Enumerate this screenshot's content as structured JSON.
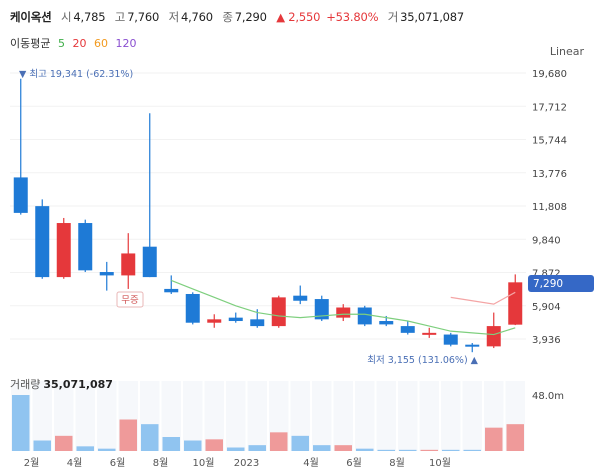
{
  "header": {
    "name": "케이옥션",
    "open_label": "시",
    "open": "4,785",
    "high_label": "고",
    "high": "7,760",
    "low_label": "저",
    "low": "4,760",
    "close_label": "종",
    "close": "7,290",
    "change": "▲ 2,550",
    "change_pct": "+53.80%",
    "volume_label": "거",
    "volume": "35,071,087"
  },
  "ma": {
    "title": "이동평균",
    "periods": [
      {
        "label": "5",
        "color": "#3fae49"
      },
      {
        "label": "20",
        "color": "#e5383b"
      },
      {
        "label": "60",
        "color": "#f29a1f"
      },
      {
        "label": "120",
        "color": "#8a4fd0"
      }
    ]
  },
  "scale_label": "Linear",
  "current_price": "7,290",
  "annotations": {
    "max_label": "▼ 최고 19,341 (-62.31%)",
    "min_label": "최저 3,155 (131.06%) ▲",
    "event_label": "무증"
  },
  "volume_title": {
    "label": "거래량",
    "value": "35,071,087"
  },
  "colors": {
    "up": "#e5383b",
    "down": "#1e7ad6",
    "up_vol": "#ef9a9a",
    "down_vol": "#90c4f0",
    "ma5": "#7ecf7e",
    "ma20": "#f4a5a5"
  },
  "chart_data": {
    "type": "candlestick",
    "y_ticks": [
      "19,680",
      "17,712",
      "15,744",
      "13,776",
      "11,808",
      "9,840",
      "7,872",
      "5,904",
      "3,936"
    ],
    "x_ticks": [
      "2월",
      "4월",
      "6월",
      "8월",
      "10월",
      "2023",
      "4월",
      "6월",
      "8월",
      "10월"
    ],
    "ylim": [
      3000,
      19680
    ],
    "candles": [
      {
        "o": 13500,
        "h": 19341,
        "l": 11300,
        "c": 11400
      },
      {
        "o": 11800,
        "h": 12200,
        "l": 7500,
        "c": 7600
      },
      {
        "o": 7600,
        "h": 11100,
        "l": 7500,
        "c": 10800
      },
      {
        "o": 10800,
        "h": 11000,
        "l": 7900,
        "c": 8000
      },
      {
        "o": 7900,
        "h": 8500,
        "l": 6800,
        "c": 7700
      },
      {
        "o": 7700,
        "h": 10200,
        "l": 6900,
        "c": 9000
      },
      {
        "o": 9400,
        "h": 17300,
        "l": 7600,
        "c": 7600
      },
      {
        "o": 6900,
        "h": 7700,
        "l": 6600,
        "c": 6700
      },
      {
        "o": 6600,
        "h": 6700,
        "l": 4800,
        "c": 4900
      },
      {
        "o": 4900,
        "h": 5400,
        "l": 4600,
        "c": 5100
      },
      {
        "o": 5200,
        "h": 5500,
        "l": 4900,
        "c": 5000
      },
      {
        "o": 5100,
        "h": 5700,
        "l": 4600,
        "c": 4700
      },
      {
        "o": 4700,
        "h": 6500,
        "l": 4600,
        "c": 6400
      },
      {
        "o": 6500,
        "h": 7100,
        "l": 6000,
        "c": 6200
      },
      {
        "o": 6300,
        "h": 6500,
        "l": 5000,
        "c": 5100
      },
      {
        "o": 5200,
        "h": 6000,
        "l": 5000,
        "c": 5800
      },
      {
        "o": 5800,
        "h": 5900,
        "l": 4700,
        "c": 4800
      },
      {
        "o": 5000,
        "h": 5300,
        "l": 4700,
        "c": 4800
      },
      {
        "o": 4700,
        "h": 5000,
        "l": 4200,
        "c": 4300
      },
      {
        "o": 4200,
        "h": 4600,
        "l": 4000,
        "c": 4300
      },
      {
        "o": 4200,
        "h": 4300,
        "l": 3500,
        "c": 3600
      },
      {
        "o": 3600,
        "h": 3700,
        "l": 3155,
        "c": 3500
      },
      {
        "o": 3500,
        "h": 5500,
        "l": 3400,
        "c": 4700
      },
      {
        "o": 4785,
        "h": 7760,
        "l": 4760,
        "c": 7290
      }
    ],
    "ma5": [
      7400,
      6900,
      6400,
      5900,
      5500,
      5300,
      5200,
      5300,
      5400,
      5400,
      5200,
      5000,
      4700,
      4400,
      4300,
      4200,
      4600
    ],
    "ma20": [
      6400,
      6200,
      6000,
      6700
    ],
    "volume": {
      "ymax": 60,
      "tick_label": "48.0m",
      "values": [
        48,
        9,
        13,
        4,
        2,
        27,
        23,
        12,
        9,
        10,
        3,
        5,
        16,
        13,
        5,
        5,
        2,
        1,
        1,
        1,
        1,
        1,
        20,
        23
      ]
    }
  }
}
